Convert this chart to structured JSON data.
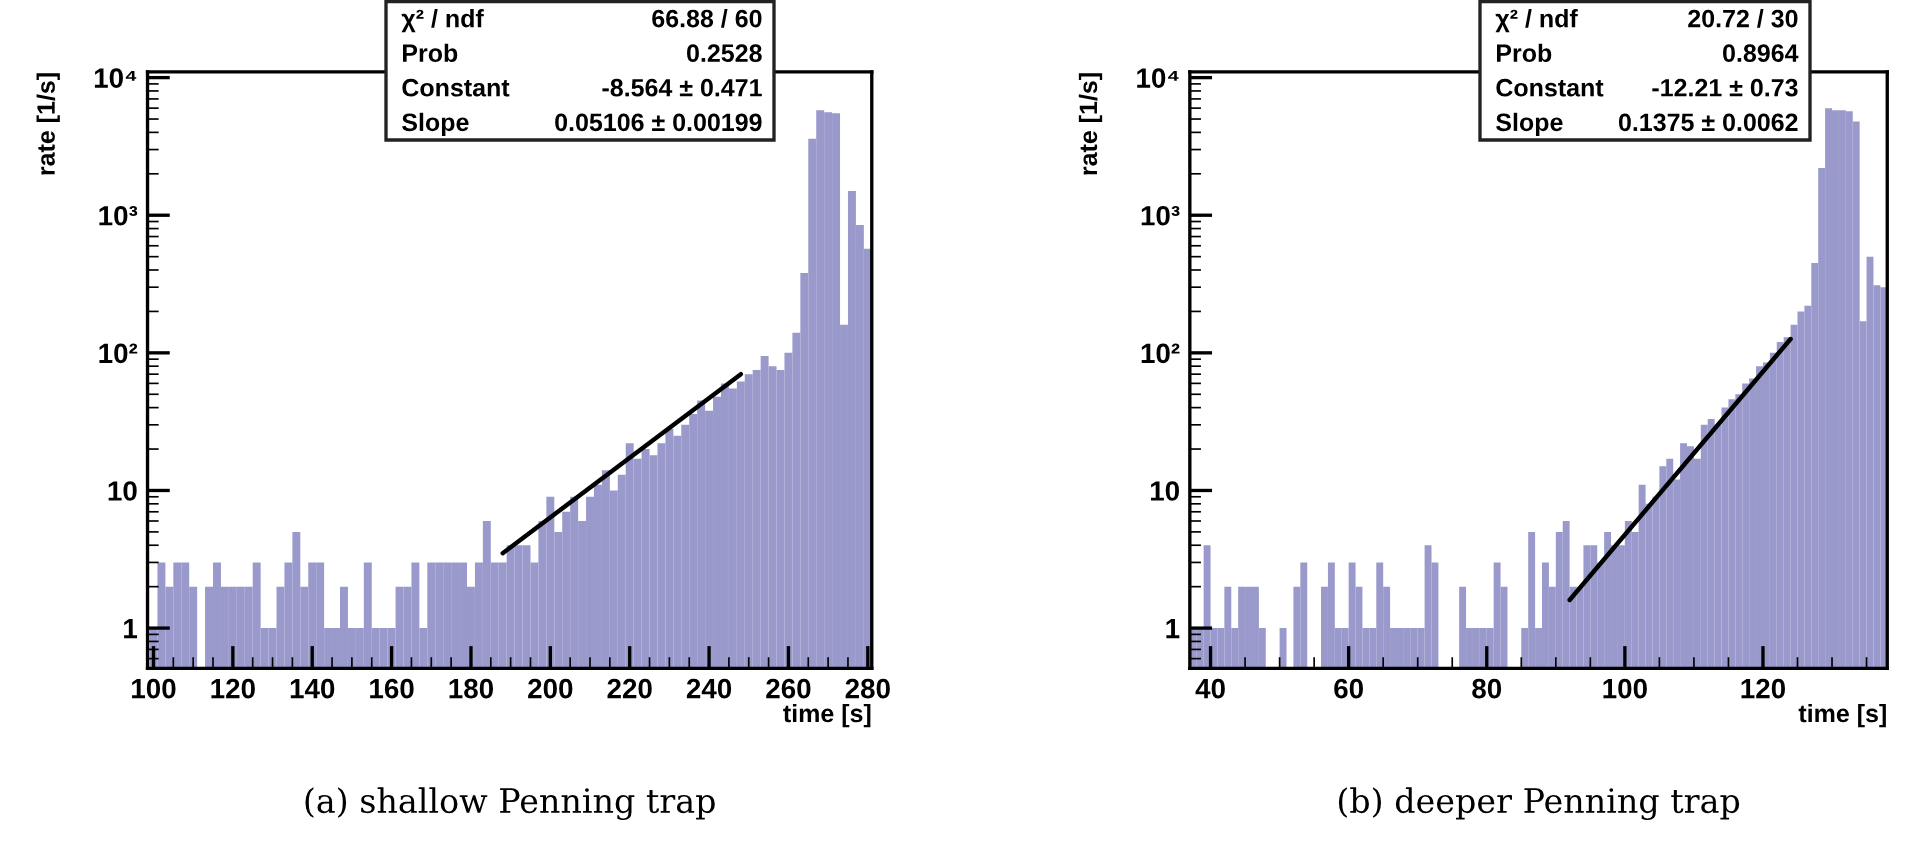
{
  "chart_data": [
    {
      "type": "histogram",
      "xlabel": "time [s]",
      "ylabel": "rate [1/s]",
      "log": "y",
      "xlim": [
        98.5,
        281
      ],
      "xticks": [
        100,
        120,
        140,
        160,
        180,
        200,
        220,
        240,
        260,
        280
      ],
      "ylim": [
        0.51,
        11000
      ],
      "yticks": [
        {
          "value": 1,
          "label": "1"
        },
        {
          "value": 10,
          "label": "10"
        },
        {
          "value": 100,
          "label": "10²"
        },
        {
          "value": 1000,
          "label": "10³"
        },
        {
          "value": 10000,
          "label": "10⁴"
        }
      ],
      "bins": [
        99,
        101,
        103,
        105,
        107,
        109,
        111,
        113,
        115,
        117,
        119,
        121,
        123,
        125,
        127,
        129,
        131,
        133,
        135,
        137,
        139,
        141,
        143,
        145,
        147,
        149,
        151,
        153,
        155,
        157,
        159,
        161,
        163,
        165,
        167,
        169,
        171,
        173,
        175,
        177,
        179,
        181,
        183,
        185,
        187,
        189,
        191,
        193,
        195,
        197,
        199,
        201,
        203,
        205,
        207,
        209,
        211,
        213,
        215,
        217,
        219,
        221,
        223,
        225,
        227,
        229,
        231,
        233,
        235,
        237,
        239,
        241,
        243,
        245,
        247,
        249,
        251,
        253,
        255,
        257,
        259,
        261,
        263,
        265,
        267,
        269,
        271,
        273,
        275,
        277,
        279,
        281
      ],
      "series": [
        {
          "color": "#9999cc",
          "values": [
            1,
            3,
            2,
            3,
            3,
            2,
            null,
            2,
            3,
            2,
            2,
            2,
            2,
            3,
            1,
            1,
            2,
            3,
            5,
            2,
            3,
            3,
            1,
            1,
            2,
            1,
            1,
            3,
            1,
            1,
            1,
            2,
            2,
            3,
            1,
            3,
            3,
            3,
            3,
            3,
            2,
            3,
            6,
            3,
            3,
            4,
            4,
            4,
            3,
            6,
            9,
            5,
            7,
            9,
            6,
            9,
            11,
            14,
            10,
            13,
            22,
            17,
            20,
            18,
            22,
            28,
            25,
            30,
            36,
            45,
            38,
            48,
            60,
            55,
            62,
            70,
            75,
            95,
            80,
            75,
            100,
            140,
            380,
            3600,
            5800,
            5600,
            5500,
            160,
            1500,
            850,
            570
          ]
        },
        {
          "type": "line",
          "color": "#000000",
          "x": [
            188,
            248
          ],
          "values": [
            3.5,
            70
          ]
        }
      ],
      "annotations": [
        "χ² / ndf",
        "66.88 / 60",
        "Prob",
        "0.2528",
        "Constant",
        "-8.564 ± 0.471",
        "Slope",
        "0.05106 ± 0.00199",
        "(a) shallow Penning trap"
      ]
    },
    {
      "type": "histogram",
      "xlabel": "time [s]",
      "ylabel": "rate [1/s]",
      "log": "y",
      "xlim": [
        37,
        138
      ],
      "xticks": [
        40,
        60,
        80,
        100,
        120
      ],
      "ylim": [
        0.51,
        11000
      ],
      "yticks": [
        {
          "value": 1,
          "label": "1"
        },
        {
          "value": 10,
          "label": "10"
        },
        {
          "value": 100,
          "label": "10²"
        },
        {
          "value": 1000,
          "label": "10³"
        },
        {
          "value": 10000,
          "label": "10⁴"
        }
      ],
      "bins": [
        37,
        38,
        39,
        40,
        41,
        42,
        43,
        44,
        45,
        46,
        47,
        48,
        49,
        50,
        51,
        52,
        53,
        54,
        55,
        56,
        57,
        58,
        59,
        60,
        61,
        62,
        63,
        64,
        65,
        66,
        67,
        68,
        69,
        70,
        71,
        72,
        73,
        74,
        75,
        76,
        77,
        78,
        79,
        80,
        81,
        82,
        83,
        84,
        85,
        86,
        87,
        88,
        89,
        90,
        91,
        92,
        93,
        94,
        95,
        96,
        97,
        98,
        99,
        100,
        101,
        102,
        103,
        104,
        105,
        106,
        107,
        108,
        109,
        110,
        111,
        112,
        113,
        114,
        115,
        116,
        117,
        118,
        119,
        120,
        121,
        122,
        123,
        124,
        125,
        126,
        127,
        128,
        129,
        130,
        131,
        132,
        133,
        134,
        135,
        136,
        137,
        138
      ],
      "series": [
        {
          "color": "#9999cc",
          "values": [
            1,
            1,
            4,
            1,
            1,
            2,
            1,
            2,
            2,
            2,
            1,
            null,
            null,
            1,
            null,
            2,
            3,
            null,
            null,
            2,
            3,
            1,
            1,
            3,
            2,
            1,
            1,
            3,
            2,
            1,
            1,
            1,
            1,
            1,
            4,
            3,
            null,
            null,
            null,
            2,
            1,
            1,
            1,
            1,
            3,
            2,
            null,
            null,
            1,
            5,
            1,
            3,
            2,
            5,
            6,
            2,
            2,
            4,
            4,
            3,
            5,
            4,
            4,
            6,
            5,
            11,
            8,
            9,
            15,
            17,
            12,
            22,
            21,
            17,
            30,
            33,
            30,
            40,
            46,
            50,
            60,
            65,
            80,
            85,
            100,
            120,
            130,
            160,
            200,
            220,
            450,
            2200,
            6000,
            5800,
            5800,
            5700,
            4800,
            170,
            500,
            310,
            300
          ]
        },
        {
          "type": "line",
          "color": "#000000",
          "x": [
            92,
            124
          ],
          "values": [
            1.6,
            126
          ]
        }
      ],
      "annotations": [
        "χ² / ndf",
        "20.72 / 30",
        "Prob",
        "0.8964",
        "Constant",
        "-12.21 ± 0.73",
        "Slope",
        "0.1375 ± 0.0062",
        "(b) deeper Penning trap"
      ]
    }
  ]
}
